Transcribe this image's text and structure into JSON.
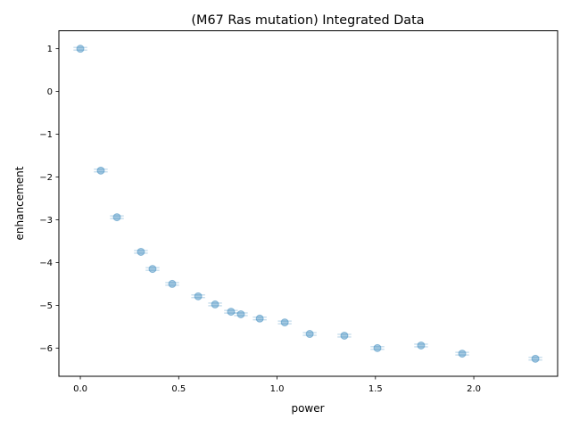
{
  "chart_data": {
    "type": "scatter",
    "title": "(M67 Ras mutation) Integrated Data",
    "xlabel": "power",
    "ylabel": "enhancement",
    "xlim": [
      -0.109,
      2.426
    ],
    "ylim": [
      -6.66,
      1.42
    ],
    "xticks": [
      0.0,
      0.5,
      1.0,
      1.5,
      2.0
    ],
    "xtick_labels": [
      "0.0",
      "0.5",
      "1.0",
      "1.5",
      "2.0"
    ],
    "yticks": [
      1,
      0,
      -1,
      -2,
      -3,
      -4,
      -5,
      -6
    ],
    "ytick_labels": [
      "1",
      "0",
      "−1",
      "−2",
      "−3",
      "−4",
      "−5",
      "−6"
    ],
    "grid": false,
    "marker_color": "#1f77b4",
    "x_error": 0.035,
    "points": [
      {
        "x": 0.0,
        "y": 1.0
      },
      {
        "x": 0.104,
        "y": -1.85
      },
      {
        "x": 0.186,
        "y": -2.94
      },
      {
        "x": 0.308,
        "y": -3.75
      },
      {
        "x": 0.367,
        "y": -4.15
      },
      {
        "x": 0.467,
        "y": -4.5
      },
      {
        "x": 0.599,
        "y": -4.79
      },
      {
        "x": 0.685,
        "y": -4.98
      },
      {
        "x": 0.766,
        "y": -5.15
      },
      {
        "x": 0.816,
        "y": -5.21
      },
      {
        "x": 0.912,
        "y": -5.31
      },
      {
        "x": 1.039,
        "y": -5.4
      },
      {
        "x": 1.166,
        "y": -5.67
      },
      {
        "x": 1.342,
        "y": -5.71
      },
      {
        "x": 1.51,
        "y": -6.0
      },
      {
        "x": 1.732,
        "y": -5.94
      },
      {
        "x": 1.941,
        "y": -6.13
      },
      {
        "x": 2.313,
        "y": -6.25
      }
    ]
  }
}
